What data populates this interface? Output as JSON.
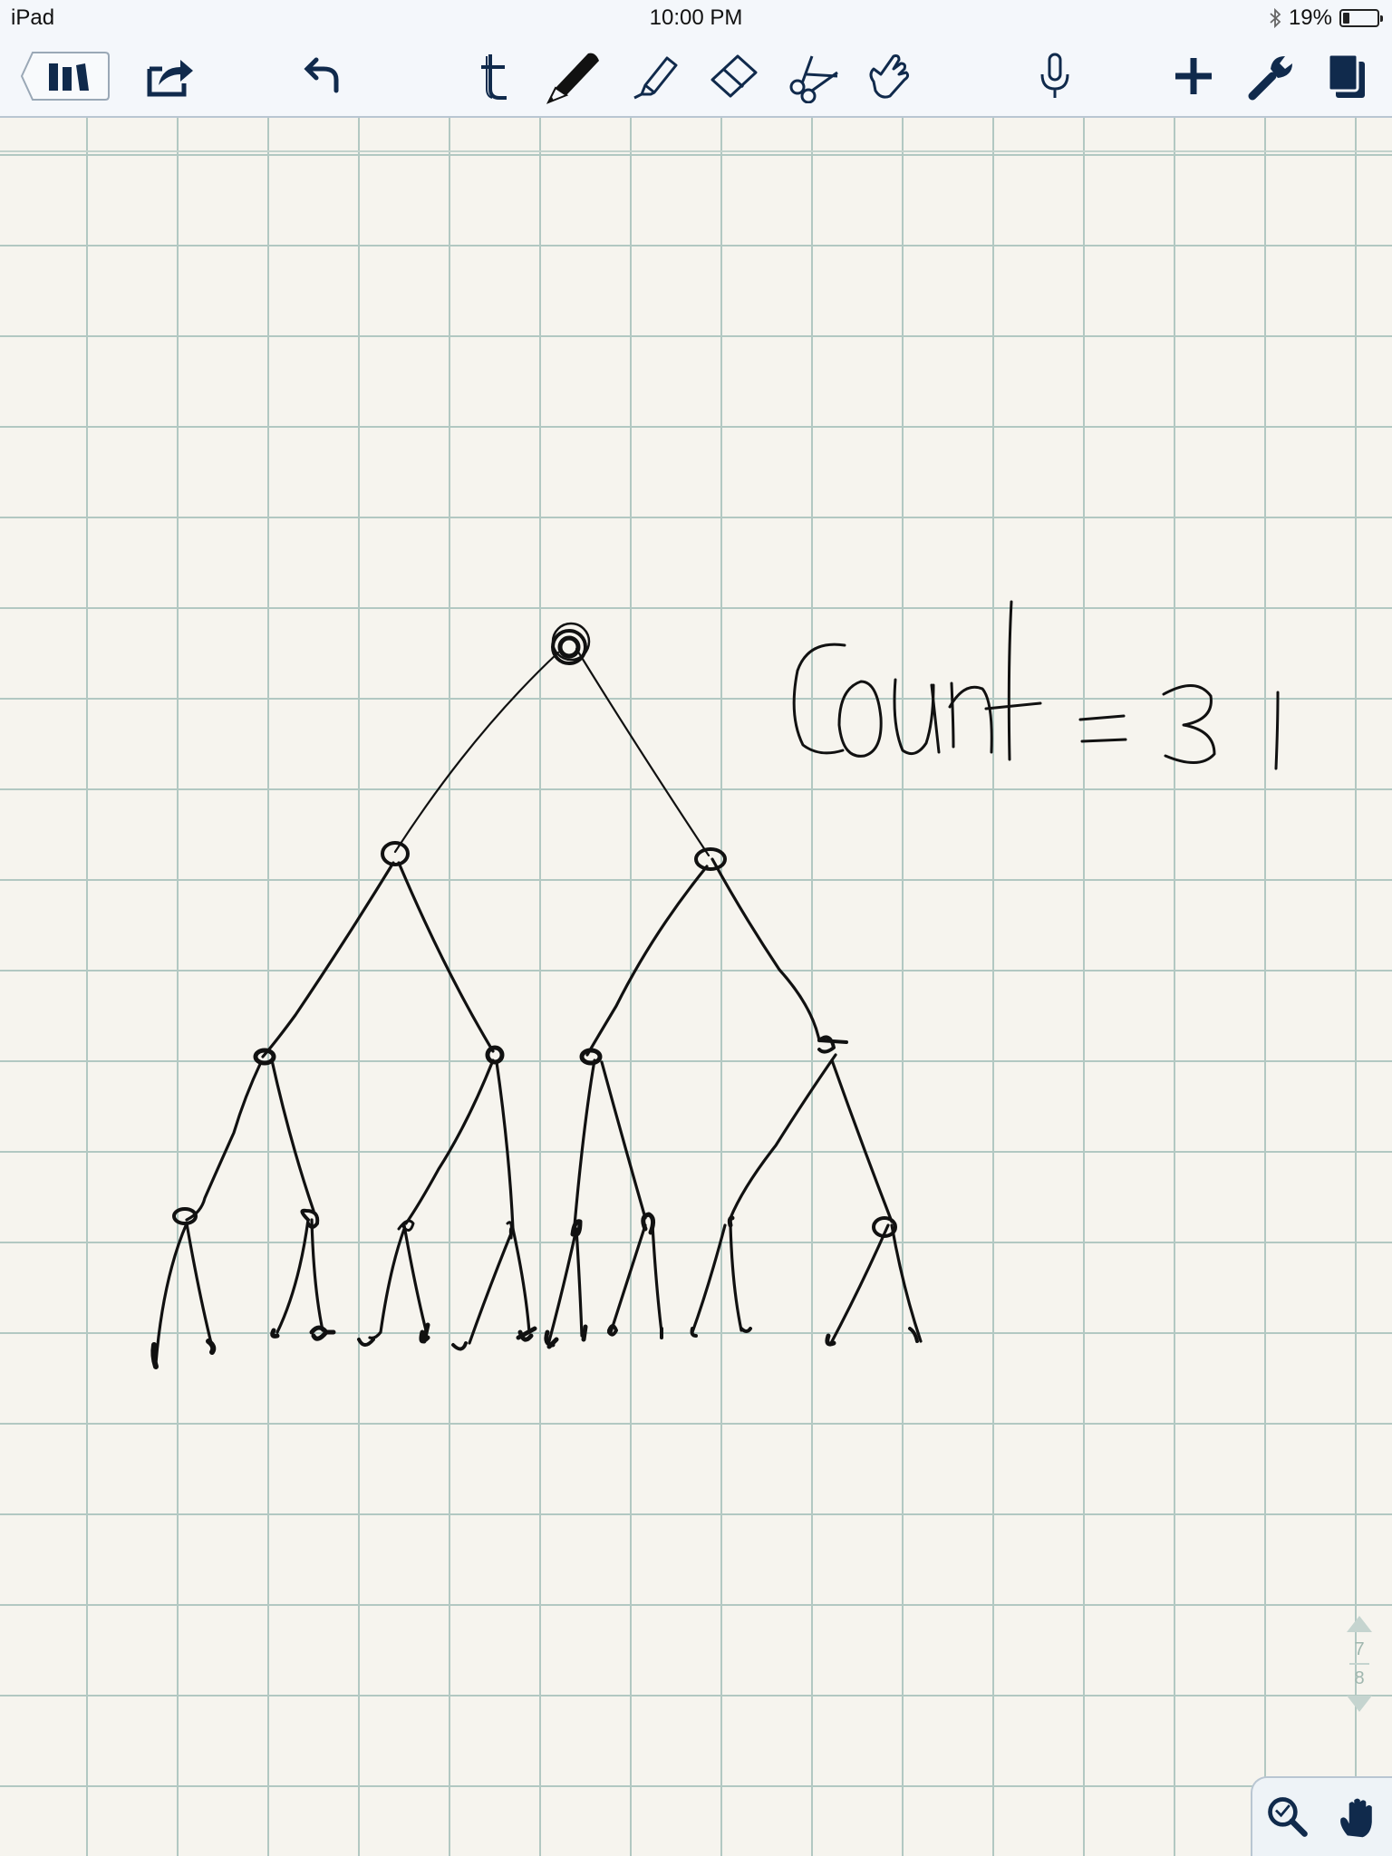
{
  "status_bar": {
    "device": "iPad",
    "time": "10:00 PM",
    "battery_text": "19%",
    "battery_level": 0.19,
    "bluetooth_icon": "bluetooth-icon"
  },
  "toolbar": {
    "icons": [
      "library-icon",
      "share-icon",
      "undo-icon",
      "text-tool-icon",
      "pen-tool-icon",
      "highlighter-tool-icon",
      "eraser-tool-icon",
      "lasso-scissors-icon",
      "pointer-hand-icon",
      "microphone-icon",
      "add-icon",
      "settings-wrench-icon",
      "pages-icon"
    ],
    "ink_color": "#111111",
    "accent_color": "#102a4c"
  },
  "note": {
    "handwritten_text": "count = 31"
  },
  "page_nav": {
    "current_page": "7",
    "total_pages": "8"
  },
  "bottom_tools": {
    "icons": [
      "zoom-icon",
      "hand-tool-icon"
    ]
  }
}
